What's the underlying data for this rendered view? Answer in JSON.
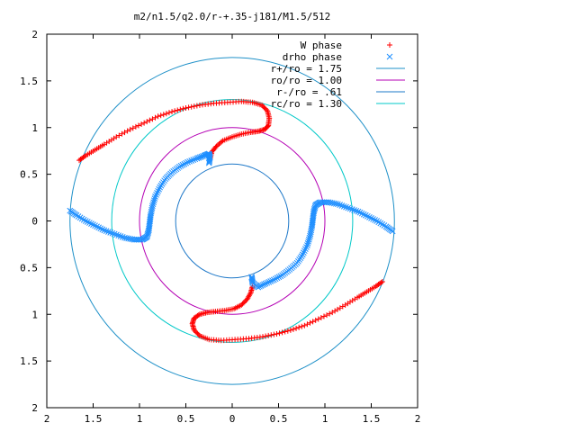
{
  "chart_data": {
    "type": "scatter",
    "title": "m2/n1.5/q2.0/r-+.35-j181/M1.5/512",
    "xlim": [
      -2,
      2
    ],
    "ylim": [
      -2,
      2
    ],
    "x_ticks": [
      -2,
      -1.5,
      -1,
      -0.5,
      0,
      0.5,
      1,
      1.5,
      2
    ],
    "y_ticks": [
      -2,
      -1.5,
      -1,
      -0.5,
      0,
      0.5,
      1,
      1.5,
      2
    ],
    "x_tick_labels": [
      "2",
      "1.5",
      "1",
      "0.5",
      "0",
      "0.5",
      "1",
      "1.5",
      "2"
    ],
    "y_tick_labels": [
      "2",
      "1.5",
      "1",
      "0.5",
      "0",
      "0.5",
      "1",
      "1.5",
      "2"
    ],
    "grid": false,
    "legend_position": "top-right",
    "series": [
      {
        "name": "W phase",
        "marker": "plus",
        "color": "#ff0000",
        "arms": [
          [
            [
              -1.65,
              0.65
            ],
            [
              -1.58,
              0.7
            ],
            [
              -1.48,
              0.76
            ],
            [
              -1.38,
              0.82
            ],
            [
              -1.25,
              0.9
            ],
            [
              -1.1,
              0.98
            ],
            [
              -0.95,
              1.05
            ],
            [
              -0.8,
              1.12
            ],
            [
              -0.65,
              1.17
            ],
            [
              -0.5,
              1.21
            ],
            [
              -0.35,
              1.24
            ],
            [
              -0.2,
              1.26
            ],
            [
              -0.05,
              1.27
            ],
            [
              0.1,
              1.28
            ],
            [
              0.22,
              1.27
            ],
            [
              0.32,
              1.24
            ],
            [
              0.38,
              1.18
            ],
            [
              0.4,
              1.1
            ],
            [
              0.39,
              1.02
            ],
            [
              0.35,
              0.98
            ],
            [
              0.28,
              0.96
            ],
            [
              0.2,
              0.95
            ],
            [
              0.1,
              0.93
            ],
            [
              0.0,
              0.9
            ],
            [
              -0.1,
              0.86
            ],
            [
              -0.17,
              0.8
            ],
            [
              -0.22,
              0.74
            ],
            [
              -0.24,
              0.66
            ]
          ],
          [
            [
              1.62,
              -0.65
            ],
            [
              1.55,
              -0.7
            ],
            [
              1.45,
              -0.76
            ],
            [
              1.35,
              -0.82
            ],
            [
              1.22,
              -0.9
            ],
            [
              1.08,
              -0.98
            ],
            [
              0.93,
              -1.05
            ],
            [
              0.78,
              -1.12
            ],
            [
              0.63,
              -1.17
            ],
            [
              0.48,
              -1.21
            ],
            [
              0.33,
              -1.24
            ],
            [
              0.18,
              -1.26
            ],
            [
              0.03,
              -1.27
            ],
            [
              -0.12,
              -1.28
            ],
            [
              -0.25,
              -1.27
            ],
            [
              -0.35,
              -1.23
            ],
            [
              -0.41,
              -1.17
            ],
            [
              -0.43,
              -1.1
            ],
            [
              -0.41,
              -1.04
            ],
            [
              -0.35,
              -1.0
            ],
            [
              -0.27,
              -0.98
            ],
            [
              -0.18,
              -0.97
            ],
            [
              -0.08,
              -0.96
            ],
            [
              0.02,
              -0.94
            ],
            [
              0.1,
              -0.9
            ],
            [
              0.16,
              -0.84
            ],
            [
              0.2,
              -0.77
            ],
            [
              0.22,
              -0.7
            ]
          ]
        ]
      },
      {
        "name": "drho phase",
        "marker": "cross",
        "color": "#1f8fff",
        "arms": [
          [
            [
              -1.75,
              0.11
            ],
            [
              -1.68,
              0.06
            ],
            [
              -1.58,
              0.0
            ],
            [
              -1.48,
              -0.05
            ],
            [
              -1.38,
              -0.1
            ],
            [
              -1.27,
              -0.14
            ],
            [
              -1.16,
              -0.18
            ],
            [
              -1.06,
              -0.2
            ],
            [
              -0.97,
              -0.2
            ],
            [
              -0.92,
              -0.17
            ],
            [
              -0.9,
              -0.1
            ],
            [
              -0.89,
              -0.02
            ],
            [
              -0.88,
              0.06
            ],
            [
              -0.86,
              0.16
            ],
            [
              -0.83,
              0.26
            ],
            [
              -0.78,
              0.36
            ],
            [
              -0.72,
              0.45
            ],
            [
              -0.65,
              0.52
            ],
            [
              -0.57,
              0.58
            ],
            [
              -0.48,
              0.63
            ],
            [
              -0.38,
              0.67
            ],
            [
              -0.3,
              0.7
            ],
            [
              -0.25,
              0.72
            ],
            [
              -0.24,
              0.68
            ],
            [
              -0.25,
              0.62
            ]
          ],
          [
            [
              1.73,
              -0.11
            ],
            [
              1.66,
              -0.06
            ],
            [
              1.56,
              0.0
            ],
            [
              1.46,
              0.05
            ],
            [
              1.36,
              0.1
            ],
            [
              1.25,
              0.14
            ],
            [
              1.14,
              0.18
            ],
            [
              1.04,
              0.2
            ],
            [
              0.95,
              0.2
            ],
            [
              0.9,
              0.17
            ],
            [
              0.88,
              0.1
            ],
            [
              0.87,
              0.02
            ],
            [
              0.86,
              -0.06
            ],
            [
              0.84,
              -0.16
            ],
            [
              0.81,
              -0.26
            ],
            [
              0.76,
              -0.36
            ],
            [
              0.7,
              -0.45
            ],
            [
              0.62,
              -0.52
            ],
            [
              0.54,
              -0.58
            ],
            [
              0.45,
              -0.63
            ],
            [
              0.36,
              -0.67
            ],
            [
              0.28,
              -0.71
            ],
            [
              0.22,
              -0.66
            ],
            [
              0.21,
              -0.6
            ]
          ]
        ]
      }
    ],
    "circles": [
      {
        "label": "r+/ro = 1.75",
        "r": 1.75,
        "color": "#1e90c8"
      },
      {
        "label": "ro/ro = 1.00",
        "r": 1.0,
        "color": "#b400b4"
      },
      {
        "label": "r-/ro = .61",
        "r": 0.61,
        "color": "#1e78c8"
      },
      {
        "label": "rc/ro = 1.30",
        "r": 1.3,
        "color": "#00c8c8"
      }
    ]
  }
}
